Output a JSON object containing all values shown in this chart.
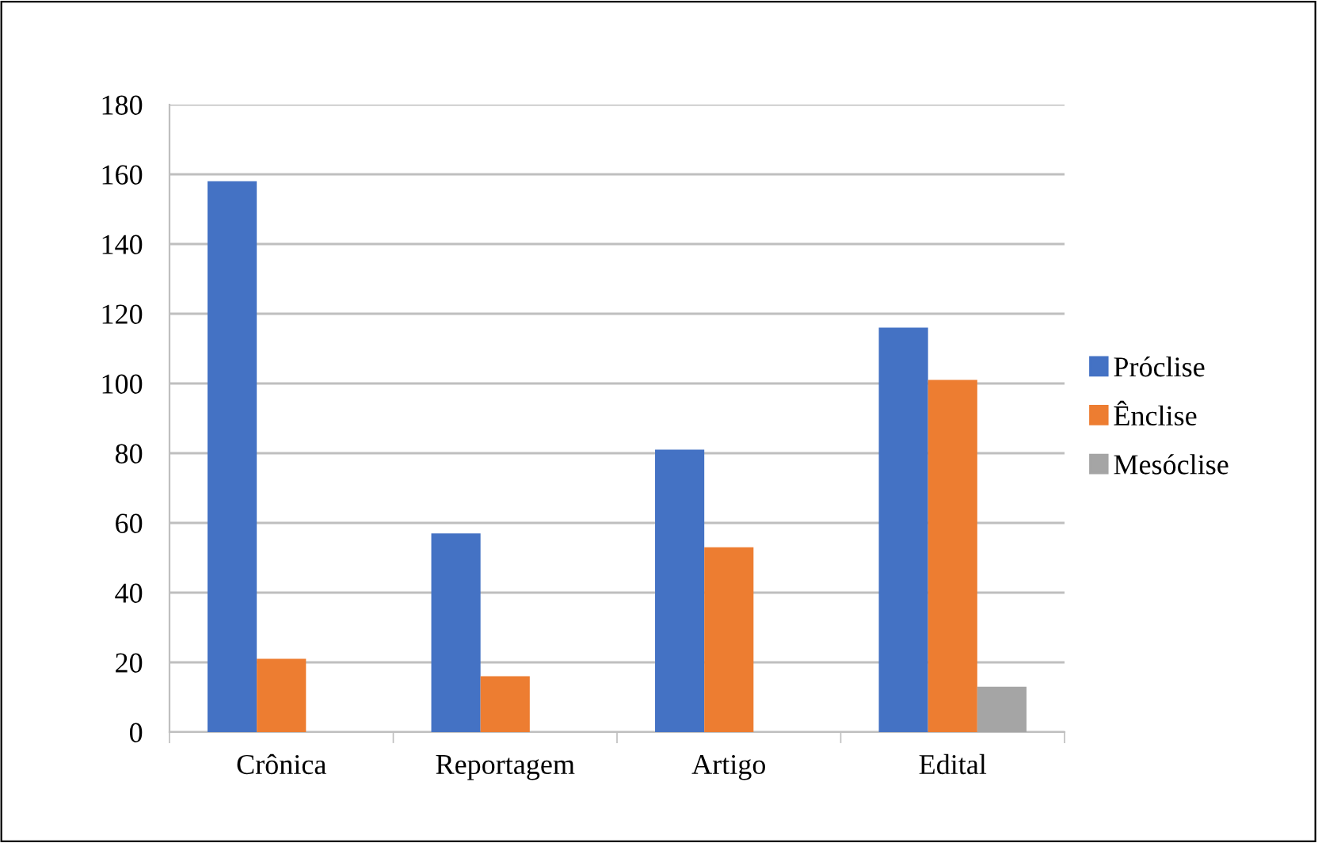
{
  "chart_data": {
    "type": "bar",
    "categories": [
      "Crônica",
      "Reportagem",
      "Artigo",
      "Edital"
    ],
    "series": [
      {
        "name": "Próclise",
        "color": "#4472c4",
        "values": [
          158,
          57,
          81,
          116
        ]
      },
      {
        "name": "Ênclise",
        "color": "#ed7d31",
        "values": [
          21,
          16,
          53,
          101
        ]
      },
      {
        "name": "Mesóclise",
        "color": "#a5a5a5",
        "values": [
          null,
          null,
          null,
          13
        ]
      }
    ],
    "ylim": [
      0,
      180
    ],
    "yticks": [
      0,
      20,
      40,
      60,
      80,
      100,
      120,
      140,
      160,
      180
    ],
    "grid": "y",
    "legend": "right"
  }
}
